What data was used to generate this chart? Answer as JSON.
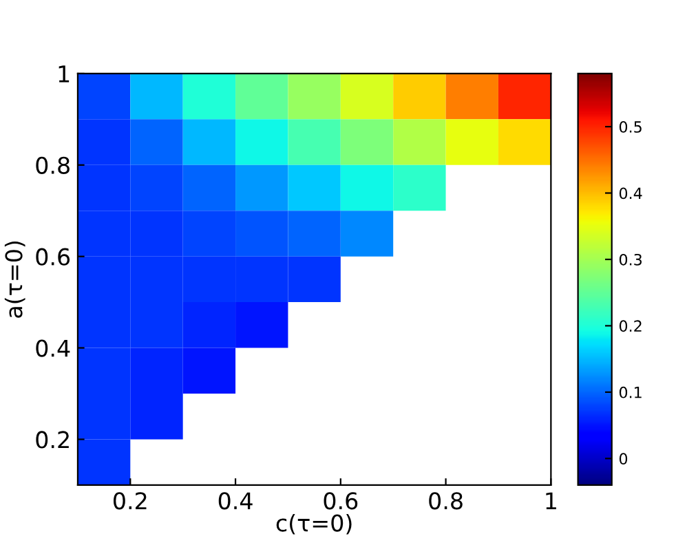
{
  "chart_data": {
    "type": "heatmap",
    "xlabel": "c(τ=0)",
    "ylabel": "a(τ=0)",
    "xlim": [
      0.1,
      1
    ],
    "xticks": [
      0.2,
      0.4,
      0.6,
      0.8,
      1
    ],
    "ylim": [
      0.1,
      1
    ],
    "yticks": [
      0.2,
      0.4,
      0.6,
      0.8,
      1
    ],
    "cells": [
      [
        0.08,
        0.15,
        0.2,
        0.25,
        0.29,
        0.34,
        0.39,
        0.44,
        0.5
      ],
      [
        0.07,
        0.1,
        0.15,
        0.19,
        0.23,
        0.27,
        0.31,
        0.35,
        0.38
      ],
      [
        0.07,
        0.08,
        0.1,
        0.13,
        0.16,
        0.19,
        0.21,
        null,
        null
      ],
      [
        0.07,
        0.07,
        0.08,
        0.09,
        0.1,
        0.12,
        null,
        null,
        null
      ],
      [
        0.07,
        0.07,
        0.07,
        0.07,
        0.07,
        null,
        null,
        null,
        null
      ],
      [
        0.07,
        0.07,
        0.06,
        0.05,
        null,
        null,
        null,
        null,
        null
      ],
      [
        0.07,
        0.06,
        0.05,
        null,
        null,
        null,
        null,
        null,
        null
      ],
      [
        0.07,
        0.06,
        null,
        null,
        null,
        null,
        null,
        null,
        null
      ],
      [
        0.07,
        null,
        null,
        null,
        null,
        null,
        null,
        null,
        null
      ]
    ],
    "clim": [
      -0.04,
      0.58
    ],
    "cticks": [
      0,
      0.1,
      0.2,
      0.3,
      0.4,
      0.5
    ]
  }
}
